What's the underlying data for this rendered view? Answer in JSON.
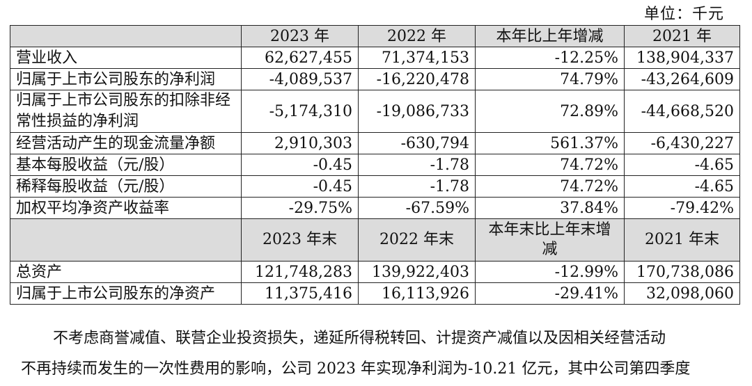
{
  "unit_label": "单位：千元",
  "header1": [
    "",
    "2023 年",
    "2022 年",
    "本年比上年增减",
    "2021 年"
  ],
  "rows1": [
    {
      "label": "营业收入",
      "v2023": "62,627,455",
      "v2022": "71,374,153",
      "change": "-12.25%",
      "v2021": "138,904,337"
    },
    {
      "label": "归属于上市公司股东的净利润",
      "v2023": "-4,089,537",
      "v2022": "-16,220,478",
      "change": "74.79%",
      "v2021": "-43,264,609"
    },
    {
      "label": "归属于上市公司股东的扣除非经常性损益的净利润",
      "v2023": "-5,174,310",
      "v2022": "-19,086,733",
      "change": "72.89%",
      "v2021": "-44,668,520"
    },
    {
      "label": "经营活动产生的现金流量净额",
      "v2023": "2,910,303",
      "v2022": "-630,794",
      "change": "561.37%",
      "v2021": "-6,430,227"
    },
    {
      "label": "基本每股收益（元/股）",
      "v2023": "-0.45",
      "v2022": "-1.78",
      "change": "74.72%",
      "v2021": "-4.65"
    },
    {
      "label": "稀释每股收益（元/股）",
      "v2023": "-0.45",
      "v2022": "-1.78",
      "change": "74.72%",
      "v2021": "-4.65"
    },
    {
      "label": "加权平均净资产收益率",
      "v2023": "-29.75%",
      "v2022": "-67.59%",
      "change": "37.84%",
      "v2021": "-79.42%"
    }
  ],
  "header2": [
    "",
    "2023 年末",
    "2022 年末",
    "本年末比上年末增减",
    "2021 年末"
  ],
  "rows2": [
    {
      "label": "总资产",
      "v2023": "121,748,283",
      "v2022": "139,922,403",
      "change": "-12.99%",
      "v2021": "170,738,086"
    },
    {
      "label": "归属于上市公司股东的净资产",
      "v2023": "11,375,416",
      "v2022": "16,113,926",
      "change": "-29.41%",
      "v2021": "32,098,060"
    }
  ],
  "paragraph_line1": "不考虑商誉减值、联营企业投资损失，递延所得税转回、计提资产减值以及因相关经营活动",
  "paragraph_line2": "不再持续而发生的一次性费用的影响，公司 2023 年实现净利润为-10.21 亿元，其中公司第四季度"
}
